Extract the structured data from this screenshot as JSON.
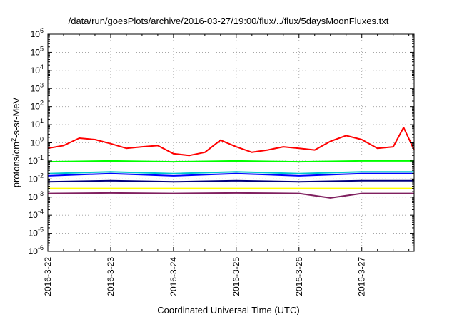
{
  "chart_data": {
    "type": "line",
    "title": "/data/run/goesPlots/archive/2016-03-27/19:00/flux/../flux/5daysMoonFluxes.txt",
    "xlabel": "Coordinated Universal Time (UTC)",
    "ylabel": {
      "prefix": "protons/cm",
      "sup": "2",
      "suffix": "-s-sr-MeV"
    },
    "x_ticks": [
      "2016-3-22",
      "2016-3-23",
      "2016-3-24",
      "2016-3-25",
      "2016-3-26",
      "2016-3-27"
    ],
    "xlim": [
      "2016-03-22T00:00",
      "2016-03-27T20:00"
    ],
    "y_scale": "log",
    "ylim": [
      1e-06,
      1000000.0
    ],
    "y_ticks": [
      {
        "base": "10",
        "exp": "-6"
      },
      {
        "base": "10",
        "exp": "-5"
      },
      {
        "base": "10",
        "exp": "-4"
      },
      {
        "base": "10",
        "exp": "-3"
      },
      {
        "base": "10",
        "exp": "-2"
      },
      {
        "base": "10",
        "exp": "-1"
      },
      {
        "base": "10",
        "exp": "0"
      },
      {
        "base": "10",
        "exp": "1"
      },
      {
        "base": "10",
        "exp": "2"
      },
      {
        "base": "10",
        "exp": "3"
      },
      {
        "base": "10",
        "exp": "4"
      },
      {
        "base": "10",
        "exp": "5"
      },
      {
        "base": "10",
        "exp": "6"
      }
    ],
    "grid": true,
    "series": [
      {
        "color": "#ffff00",
        "x": [
          "2016-03-22T00:00",
          "2016-03-23T00:00",
          "2016-03-24T00:00",
          "2016-03-25T00:00",
          "2016-03-26T00:00",
          "2016-03-27T00:00",
          "2016-03-27T20:00"
        ],
        "values": [
          0.003,
          0.003,
          0.003,
          0.003,
          0.003,
          0.003,
          0.003
        ]
      },
      {
        "color": "#7f1f5f",
        "x": [
          "2016-03-22T00:00",
          "2016-03-23T00:00",
          "2016-03-24T00:00",
          "2016-03-25T00:00",
          "2016-03-26T00:00",
          "2016-03-26T12:00",
          "2016-03-27T00:00",
          "2016-03-27T20:00"
        ],
        "values": [
          0.0016,
          0.0017,
          0.0016,
          0.0017,
          0.0016,
          0.0009,
          0.0016,
          0.0016
        ]
      },
      {
        "color": "#00ff00",
        "x": [
          "2016-03-22T00:00",
          "2016-03-23T00:00",
          "2016-03-24T00:00",
          "2016-03-25T00:00",
          "2016-03-26T00:00",
          "2016-03-27T00:00",
          "2016-03-27T20:00"
        ],
        "values": [
          0.09,
          0.1,
          0.09,
          0.1,
          0.09,
          0.1,
          0.1
        ]
      },
      {
        "color": "#00cccc",
        "x": [
          "2016-03-22T00:00",
          "2016-03-23T00:00",
          "2016-03-24T00:00",
          "2016-03-25T00:00",
          "2016-03-26T00:00",
          "2016-03-27T00:00",
          "2016-03-27T20:00"
        ],
        "values": [
          0.02,
          0.025,
          0.02,
          0.025,
          0.02,
          0.025,
          0.025
        ]
      },
      {
        "color": "#0000ff",
        "x": [
          "2016-03-22T00:00",
          "2016-03-23T00:00",
          "2016-03-24T00:00",
          "2016-03-25T00:00",
          "2016-03-26T00:00",
          "2016-03-27T00:00",
          "2016-03-27T20:00"
        ],
        "values": [
          0.015,
          0.02,
          0.015,
          0.02,
          0.015,
          0.02,
          0.02
        ]
      },
      {
        "color": "#000080",
        "x": [
          "2016-03-22T00:00",
          "2016-03-23T00:00",
          "2016-03-24T00:00",
          "2016-03-25T00:00",
          "2016-03-26T00:00",
          "2016-03-27T00:00",
          "2016-03-27T20:00"
        ],
        "values": [
          0.007,
          0.008,
          0.007,
          0.008,
          0.007,
          0.008,
          0.008
        ]
      },
      {
        "color": "#ff0000",
        "x": [
          "2016-03-22T00:00",
          "2016-03-22T06:00",
          "2016-03-22T12:00",
          "2016-03-22T18:00",
          "2016-03-23T00:00",
          "2016-03-23T06:00",
          "2016-03-23T12:00",
          "2016-03-23T18:00",
          "2016-03-24T00:00",
          "2016-03-24T06:00",
          "2016-03-24T12:00",
          "2016-03-24T18:00",
          "2016-03-25T00:00",
          "2016-03-25T06:00",
          "2016-03-25T12:00",
          "2016-03-25T18:00",
          "2016-03-26T00:00",
          "2016-03-26T06:00",
          "2016-03-26T12:00",
          "2016-03-26T18:00",
          "2016-03-27T00:00",
          "2016-03-27T06:00",
          "2016-03-27T12:00",
          "2016-03-27T16:00",
          "2016-03-27T20:00"
        ],
        "values": [
          0.5,
          0.7,
          1.8,
          1.5,
          0.9,
          0.5,
          0.6,
          0.7,
          0.25,
          0.2,
          0.3,
          1.4,
          0.6,
          0.3,
          0.4,
          0.6,
          0.5,
          0.4,
          1.2,
          2.5,
          1.5,
          0.5,
          0.6,
          7,
          0.4
        ]
      }
    ]
  }
}
